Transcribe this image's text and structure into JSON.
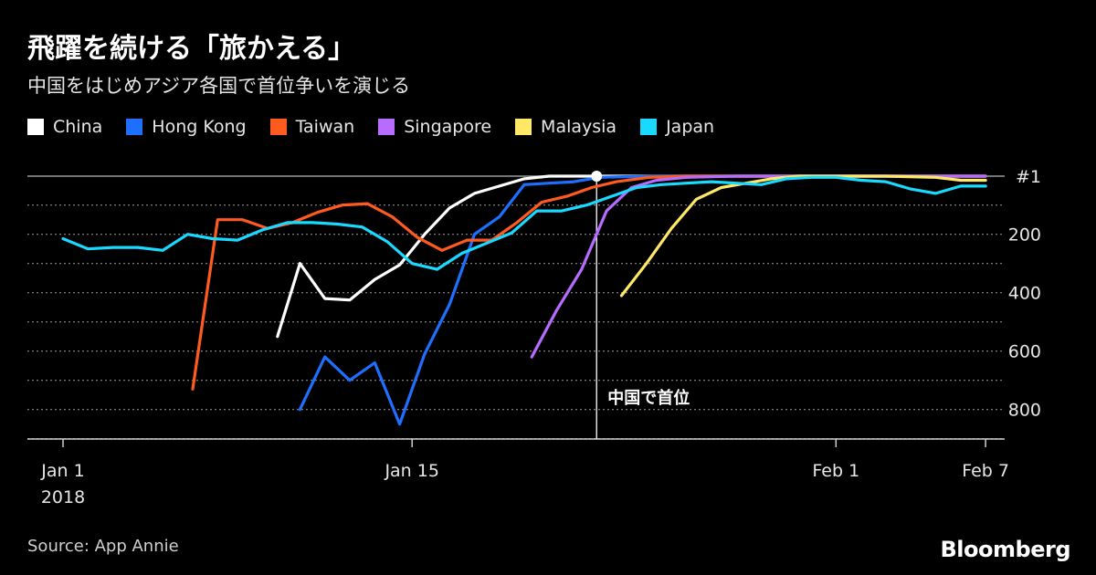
{
  "title": "飛躍を続ける「旅かえる」",
  "subtitle": "中国をはじめアジア各国で首位争いを演じる",
  "source": "Source: App Annie",
  "brand": "Bloomberg",
  "annotation": "中国で首位",
  "chart_data": {
    "type": "line",
    "y_scale": "inverted rank",
    "ylim": [
      1,
      900
    ],
    "y_ticks": [
      {
        "value": 1,
        "label": "#1"
      },
      {
        "value": 200,
        "label": "200"
      },
      {
        "value": 400,
        "label": "400"
      },
      {
        "value": 600,
        "label": "600"
      },
      {
        "value": 800,
        "label": "800"
      }
    ],
    "x_ticks": [
      {
        "day": 1,
        "label": "Jan 1",
        "sublabel": "2018"
      },
      {
        "day": 15,
        "label": "Jan 15",
        "sublabel": ""
      },
      {
        "day": 32,
        "label": "Feb 1",
        "sublabel": ""
      },
      {
        "day": 38,
        "label": "Feb 7",
        "sublabel": ""
      }
    ],
    "annotation_day": 22.4,
    "series": [
      {
        "name": "China",
        "color": "#ffffff",
        "points": [
          [
            9.6,
            550
          ],
          [
            10.5,
            300
          ],
          [
            11.5,
            420
          ],
          [
            12.5,
            425
          ],
          [
            13.5,
            355
          ],
          [
            14.5,
            305
          ],
          [
            15.5,
            200
          ],
          [
            16.5,
            110
          ],
          [
            17.5,
            60
          ],
          [
            18.5,
            35
          ],
          [
            19.5,
            10
          ],
          [
            20.5,
            1
          ],
          [
            21.5,
            1
          ],
          [
            22.4,
            1
          ],
          [
            23.5,
            1
          ],
          [
            25,
            1
          ],
          [
            30,
            1
          ],
          [
            38,
            1
          ]
        ]
      },
      {
        "name": "Hong Kong",
        "color": "#1f6fff",
        "points": [
          [
            10.5,
            800
          ],
          [
            11.5,
            620
          ],
          [
            12.5,
            700
          ],
          [
            13.5,
            640
          ],
          [
            14.5,
            850
          ],
          [
            15.5,
            610
          ],
          [
            16.5,
            440
          ],
          [
            17.5,
            200
          ],
          [
            18.5,
            140
          ],
          [
            19.5,
            30
          ],
          [
            20.5,
            25
          ],
          [
            21.5,
            20
          ],
          [
            22.5,
            5
          ],
          [
            23.5,
            3
          ],
          [
            25,
            1
          ],
          [
            30,
            1
          ],
          [
            38,
            1
          ]
        ]
      },
      {
        "name": "Taiwan",
        "color": "#ff5a1f",
        "points": [
          [
            6.2,
            730
          ],
          [
            7.2,
            150
          ],
          [
            8.2,
            150
          ],
          [
            9.2,
            180
          ],
          [
            10.2,
            160
          ],
          [
            11.2,
            125
          ],
          [
            12.2,
            100
          ],
          [
            13.2,
            95
          ],
          [
            14.2,
            140
          ],
          [
            15.2,
            210
          ],
          [
            16.2,
            255
          ],
          [
            17.2,
            220
          ],
          [
            18.2,
            220
          ],
          [
            19.2,
            160
          ],
          [
            20.2,
            90
          ],
          [
            21.2,
            70
          ],
          [
            22.2,
            40
          ],
          [
            23.2,
            20
          ],
          [
            24.5,
            5
          ],
          [
            26,
            1
          ],
          [
            30,
            1
          ],
          [
            38,
            1
          ]
        ]
      },
      {
        "name": "Singapore",
        "color": "#b86bff",
        "points": [
          [
            19.8,
            620
          ],
          [
            20.8,
            460
          ],
          [
            21.8,
            320
          ],
          [
            22.8,
            120
          ],
          [
            23.8,
            40
          ],
          [
            24.8,
            15
          ],
          [
            26,
            5
          ],
          [
            28,
            1
          ],
          [
            38,
            1
          ]
        ]
      },
      {
        "name": "Malaysia",
        "color": "#ffe866",
        "points": [
          [
            23.4,
            410
          ],
          [
            24.4,
            300
          ],
          [
            25.4,
            180
          ],
          [
            26.4,
            80
          ],
          [
            27.4,
            40
          ],
          [
            28.4,
            25
          ],
          [
            29.4,
            10
          ],
          [
            30.5,
            1
          ],
          [
            32,
            1
          ],
          [
            34,
            1
          ],
          [
            36,
            5
          ],
          [
            37,
            15
          ],
          [
            38,
            15
          ]
        ]
      },
      {
        "name": "Japan",
        "color": "#1ad9ff",
        "points": [
          [
            1,
            215
          ],
          [
            2,
            250
          ],
          [
            3,
            245
          ],
          [
            4,
            245
          ],
          [
            5,
            255
          ],
          [
            6,
            200
          ],
          [
            7,
            215
          ],
          [
            8,
            220
          ],
          [
            9,
            185
          ],
          [
            10,
            160
          ],
          [
            11,
            160
          ],
          [
            12,
            165
          ],
          [
            13,
            175
          ],
          [
            14,
            225
          ],
          [
            15,
            300
          ],
          [
            16,
            320
          ],
          [
            17,
            265
          ],
          [
            18,
            230
          ],
          [
            19,
            195
          ],
          [
            20,
            120
          ],
          [
            21,
            120
          ],
          [
            22,
            100
          ],
          [
            23,
            70
          ],
          [
            24,
            40
          ],
          [
            25,
            30
          ],
          [
            26,
            25
          ],
          [
            27,
            20
          ],
          [
            28,
            25
          ],
          [
            29,
            30
          ],
          [
            30,
            10
          ],
          [
            31,
            5
          ],
          [
            32,
            5
          ],
          [
            33,
            15
          ],
          [
            34,
            20
          ],
          [
            35,
            45
          ],
          [
            36,
            60
          ],
          [
            37,
            35
          ],
          [
            38,
            35
          ]
        ]
      }
    ]
  }
}
